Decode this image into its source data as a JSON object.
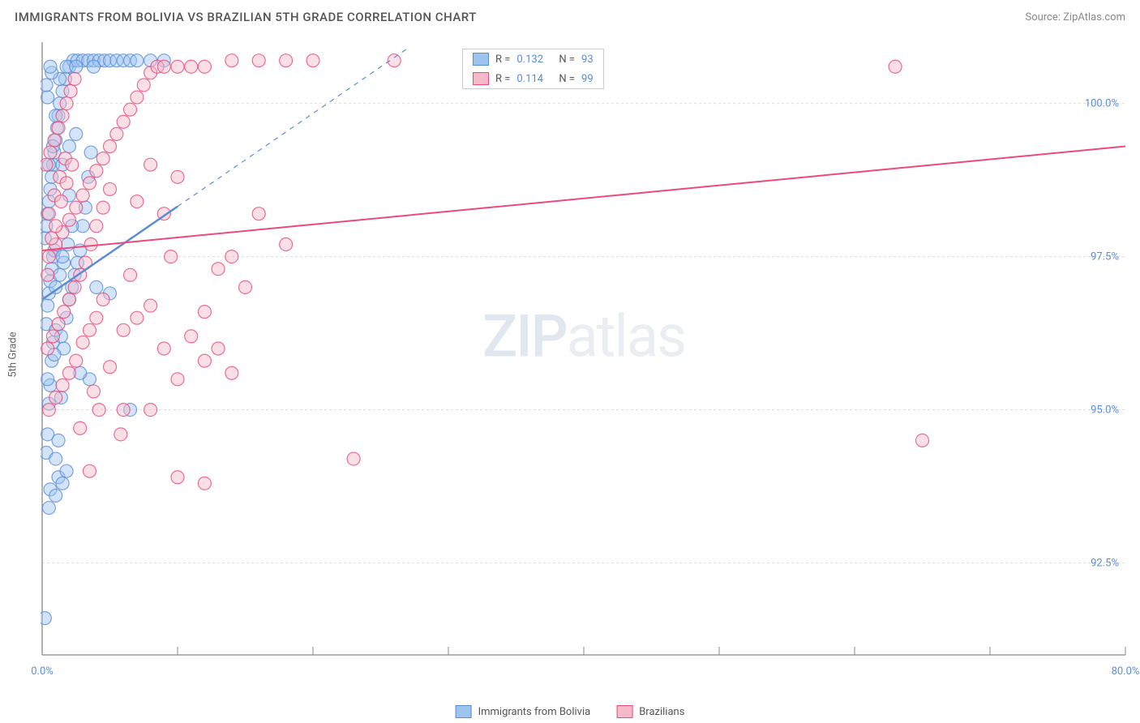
{
  "header": {
    "title": "IMMIGRANTS FROM BOLIVIA VS BRAZILIAN 5TH GRADE CORRELATION CHART",
    "source_label": "Source: ZipAtlas.com"
  },
  "chart": {
    "type": "scatter",
    "y_axis_label": "5th Grade",
    "background_color": "#ffffff",
    "grid_color": "#dddddd",
    "axis_color": "#888888",
    "xlim": [
      0,
      80
    ],
    "ylim": [
      91.0,
      101.0
    ],
    "x_ticks": [
      0,
      10,
      20,
      30,
      40,
      50,
      60,
      70,
      80
    ],
    "x_tick_labels_shown": {
      "0": "0.0%",
      "80": "80.0%"
    },
    "y_ticks": [
      92.5,
      95.0,
      97.5,
      100.0
    ],
    "y_tick_labels": [
      "92.5%",
      "95.0%",
      "97.5%",
      "100.0%"
    ],
    "marker_radius": 8,
    "marker_opacity": 0.45,
    "marker_stroke_width": 1.2,
    "series": [
      {
        "name": "Immigrants from Bolivia",
        "color_fill": "#9dc3ef",
        "color_stroke": "#5b8dd6",
        "R": 0.132,
        "N": 93,
        "trend": {
          "x1": 0,
          "y1": 96.8,
          "x2": 27,
          "y2": 100.9,
          "dash_after_x": 10,
          "solid_width": 2.5
        },
        "points": [
          [
            0.2,
            91.6
          ],
          [
            0.3,
            94.3
          ],
          [
            0.4,
            94.6
          ],
          [
            0.5,
            95.1
          ],
          [
            0.6,
            95.4
          ],
          [
            0.7,
            95.8
          ],
          [
            0.8,
            96.1
          ],
          [
            0.3,
            96.4
          ],
          [
            0.4,
            96.7
          ],
          [
            0.5,
            96.9
          ],
          [
            0.6,
            97.1
          ],
          [
            0.7,
            97.3
          ],
          [
            0.8,
            97.5
          ],
          [
            0.9,
            97.6
          ],
          [
            0.2,
            97.8
          ],
          [
            0.3,
            98.0
          ],
          [
            0.4,
            98.2
          ],
          [
            0.5,
            98.4
          ],
          [
            0.6,
            98.6
          ],
          [
            0.7,
            98.8
          ],
          [
            0.8,
            99.0
          ],
          [
            0.9,
            99.2
          ],
          [
            1.0,
            99.4
          ],
          [
            1.1,
            99.6
          ],
          [
            1.2,
            99.8
          ],
          [
            1.3,
            100.0
          ],
          [
            1.5,
            100.2
          ],
          [
            1.7,
            100.4
          ],
          [
            2.0,
            100.6
          ],
          [
            2.3,
            100.7
          ],
          [
            2.6,
            100.7
          ],
          [
            3.0,
            100.7
          ],
          [
            3.4,
            100.7
          ],
          [
            3.8,
            100.7
          ],
          [
            4.2,
            100.7
          ],
          [
            4.6,
            100.7
          ],
          [
            5.0,
            100.7
          ],
          [
            5.5,
            100.7
          ],
          [
            6.0,
            100.7
          ],
          [
            6.5,
            100.7
          ],
          [
            7.0,
            100.7
          ],
          [
            8.0,
            100.7
          ],
          [
            9.0,
            100.7
          ],
          [
            1.2,
            93.9
          ],
          [
            1.5,
            93.8
          ],
          [
            1.8,
            94.0
          ],
          [
            0.6,
            93.7
          ],
          [
            1.0,
            94.2
          ],
          [
            1.2,
            94.5
          ],
          [
            1.4,
            95.2
          ],
          [
            1.6,
            96.0
          ],
          [
            1.8,
            96.5
          ],
          [
            2.0,
            96.8
          ],
          [
            2.2,
            97.0
          ],
          [
            2.4,
            97.2
          ],
          [
            2.6,
            97.4
          ],
          [
            2.8,
            97.6
          ],
          [
            3.0,
            98.0
          ],
          [
            3.2,
            98.3
          ],
          [
            3.4,
            98.8
          ],
          [
            3.6,
            99.2
          ],
          [
            3.8,
            100.6
          ],
          [
            1.0,
            97.0
          ],
          [
            1.3,
            97.2
          ],
          [
            1.6,
            97.4
          ],
          [
            1.9,
            97.7
          ],
          [
            2.2,
            98.0
          ],
          [
            0.5,
            99.0
          ],
          [
            0.8,
            99.3
          ],
          [
            1.0,
            99.8
          ],
          [
            1.3,
            100.4
          ],
          [
            0.4,
            100.1
          ],
          [
            0.7,
            100.5
          ],
          [
            1.0,
            96.3
          ],
          [
            1.5,
            97.5
          ],
          [
            2.0,
            98.5
          ],
          [
            2.5,
            99.5
          ],
          [
            0.4,
            95.5
          ],
          [
            0.9,
            95.9
          ],
          [
            1.4,
            96.2
          ],
          [
            0.5,
            93.4
          ],
          [
            1.0,
            93.6
          ],
          [
            1.5,
            99.0
          ],
          [
            2.0,
            99.3
          ],
          [
            0.3,
            100.3
          ],
          [
            0.6,
            100.6
          ],
          [
            1.8,
            100.6
          ],
          [
            2.5,
            100.6
          ],
          [
            4.0,
            97.0
          ],
          [
            3.5,
            95.5
          ],
          [
            5.0,
            96.9
          ],
          [
            6.5,
            95.0
          ],
          [
            2.8,
            95.6
          ]
        ]
      },
      {
        "name": "Brazilians",
        "color_fill": "#f5b9ca",
        "color_stroke": "#e94b7a",
        "R": 0.114,
        "N": 99,
        "trend": {
          "x1": 0,
          "y1": 97.6,
          "x2": 80,
          "y2": 99.3,
          "dash_after_x": 80,
          "solid_width": 2
        },
        "points": [
          [
            0.5,
            97.5
          ],
          [
            1.0,
            97.7
          ],
          [
            1.5,
            97.9
          ],
          [
            2.0,
            98.1
          ],
          [
            2.5,
            98.3
          ],
          [
            3.0,
            98.5
          ],
          [
            3.5,
            98.7
          ],
          [
            4.0,
            98.9
          ],
          [
            4.5,
            99.1
          ],
          [
            5.0,
            99.3
          ],
          [
            5.5,
            99.5
          ],
          [
            6.0,
            99.7
          ],
          [
            6.5,
            99.9
          ],
          [
            7.0,
            100.1
          ],
          [
            7.5,
            100.3
          ],
          [
            8.0,
            100.5
          ],
          [
            8.5,
            100.6
          ],
          [
            9.0,
            100.6
          ],
          [
            10.0,
            100.6
          ],
          [
            11.0,
            100.6
          ],
          [
            12.0,
            100.6
          ],
          [
            14.0,
            100.7
          ],
          [
            16.0,
            100.7
          ],
          [
            18.0,
            100.7
          ],
          [
            20.0,
            100.7
          ],
          [
            26.0,
            100.7
          ],
          [
            0.4,
            96.0
          ],
          [
            0.8,
            96.2
          ],
          [
            1.2,
            96.4
          ],
          [
            1.6,
            96.6
          ],
          [
            2.0,
            96.8
          ],
          [
            2.4,
            97.0
          ],
          [
            2.8,
            97.2
          ],
          [
            3.2,
            97.4
          ],
          [
            3.6,
            97.7
          ],
          [
            4.0,
            98.0
          ],
          [
            4.5,
            98.3
          ],
          [
            5.0,
            98.6
          ],
          [
            0.5,
            95.0
          ],
          [
            1.0,
            95.2
          ],
          [
            1.5,
            95.4
          ],
          [
            2.0,
            95.6
          ],
          [
            2.5,
            95.8
          ],
          [
            3.0,
            96.1
          ],
          [
            3.5,
            96.3
          ],
          [
            4.0,
            96.5
          ],
          [
            0.3,
            99.0
          ],
          [
            0.6,
            99.2
          ],
          [
            0.9,
            99.4
          ],
          [
            1.2,
            99.6
          ],
          [
            1.5,
            99.8
          ],
          [
            1.8,
            100.0
          ],
          [
            2.1,
            100.2
          ],
          [
            2.4,
            100.4
          ],
          [
            0.5,
            98.2
          ],
          [
            0.9,
            98.5
          ],
          [
            1.3,
            98.8
          ],
          [
            1.7,
            99.1
          ],
          [
            6.0,
            96.3
          ],
          [
            7.0,
            96.5
          ],
          [
            8.0,
            96.7
          ],
          [
            9.0,
            96.0
          ],
          [
            10.0,
            95.5
          ],
          [
            11.0,
            96.2
          ],
          [
            12.0,
            95.8
          ],
          [
            14.0,
            95.6
          ],
          [
            15.0,
            97.0
          ],
          [
            16.0,
            98.2
          ],
          [
            10.0,
            93.9
          ],
          [
            12.0,
            93.8
          ],
          [
            8.0,
            95.0
          ],
          [
            13.0,
            97.3
          ],
          [
            14.0,
            97.5
          ],
          [
            18.0,
            97.7
          ],
          [
            23.0,
            94.2
          ],
          [
            63.0,
            100.6
          ],
          [
            65.0,
            94.5
          ],
          [
            5.0,
            95.7
          ],
          [
            6.0,
            95.0
          ],
          [
            7.0,
            98.4
          ],
          [
            8.0,
            99.0
          ],
          [
            9.0,
            98.2
          ],
          [
            10.0,
            98.8
          ],
          [
            12.0,
            96.6
          ],
          [
            13.0,
            96.0
          ],
          [
            4.5,
            96.8
          ],
          [
            3.8,
            95.3
          ],
          [
            6.5,
            97.2
          ],
          [
            9.5,
            97.5
          ],
          [
            2.8,
            94.7
          ],
          [
            3.5,
            94.0
          ],
          [
            4.2,
            95.0
          ],
          [
            5.8,
            94.6
          ],
          [
            0.4,
            97.2
          ],
          [
            0.7,
            97.8
          ],
          [
            1.0,
            98.0
          ],
          [
            1.4,
            98.4
          ],
          [
            1.8,
            98.7
          ],
          [
            2.2,
            99.0
          ]
        ]
      }
    ],
    "legend_top": [
      {
        "swatch_fill": "#9dc3ef",
        "swatch_stroke": "#5b8dd6",
        "r_label": "R =",
        "r_value": "0.132",
        "n_label": "N =",
        "n_value": "93"
      },
      {
        "swatch_fill": "#f5b9ca",
        "swatch_stroke": "#e94b7a",
        "r_label": "R =",
        "r_value": "0.114",
        "n_label": "N =",
        "n_value": "99"
      }
    ],
    "legend_bottom": [
      {
        "swatch_fill": "#9dc3ef",
        "swatch_stroke": "#5b8dd6",
        "label": "Immigrants from Bolivia"
      },
      {
        "swatch_fill": "#f5b9ca",
        "swatch_stroke": "#e94b7a",
        "label": "Brazilians"
      }
    ],
    "watermark": {
      "part1": "ZIP",
      "part2": "atlas"
    }
  }
}
